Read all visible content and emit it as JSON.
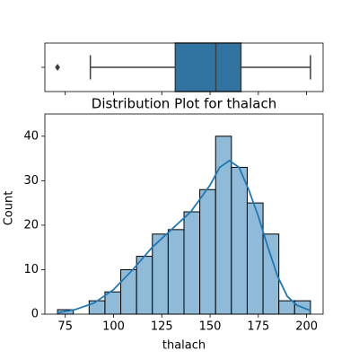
{
  "chart_data": [
    {
      "type": "box",
      "min": 88,
      "q1": 132,
      "median": 153,
      "q3": 166,
      "max": 202,
      "outliers": [
        71
      ],
      "color": "#3274a1",
      "xlim": [
        64.45,
        208.55
      ],
      "xticks": [
        75,
        100,
        125,
        150,
        175,
        200
      ]
    },
    {
      "type": "histogram",
      "title": "Distribution Plot for thalach",
      "xlabel": "thalach",
      "ylabel": "Count",
      "bins": [
        71,
        79.1875,
        87.375,
        95.5625,
        103.75,
        111.9375,
        120.125,
        128.3125,
        136.5,
        144.6875,
        152.875,
        161.0625,
        169.25,
        177.4375,
        185.625,
        193.8125,
        202
      ],
      "counts": [
        1,
        0,
        3,
        5,
        10,
        13,
        18,
        19,
        23,
        28,
        40,
        33,
        25,
        18,
        3,
        3
      ],
      "color": "#8fbbd9",
      "kde": {
        "color": "#1f77b4",
        "x": [
          71,
          80,
          90,
          100,
          110,
          120,
          130,
          140,
          150,
          155,
          160,
          165,
          170,
          175,
          180,
          185,
          190,
          195,
          202
        ],
        "y": [
          0.3,
          1,
          2.5,
          5.5,
          10,
          15,
          19,
          23,
          29,
          33,
          34.5,
          33,
          28,
          22,
          15,
          8.5,
          4,
          2,
          0.8
        ]
      },
      "xlim": [
        64.45,
        208.55
      ],
      "ylim": [
        0,
        45
      ],
      "xticks": [
        75,
        100,
        125,
        150,
        175,
        200
      ],
      "yticks": [
        0,
        10,
        20,
        30,
        40
      ]
    }
  ]
}
